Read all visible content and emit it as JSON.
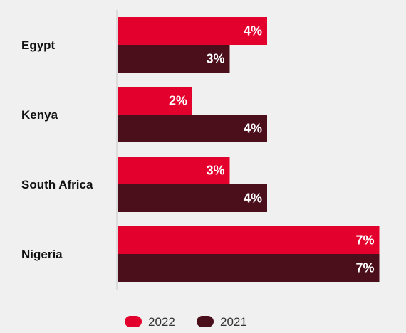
{
  "chart_data": {
    "type": "bar",
    "orientation": "horizontal",
    "categories": [
      "Egypt",
      "Kenya",
      "South Africa",
      "Nigeria"
    ],
    "series": [
      {
        "name": "2022",
        "color": "#e3002d",
        "values": [
          4,
          2,
          3,
          7
        ],
        "labels": [
          "4%",
          "2%",
          "3%",
          "7%"
        ]
      },
      {
        "name": "2021",
        "color": "#4a0f1b",
        "values": [
          3,
          4,
          4,
          7
        ],
        "labels": [
          "3%",
          "4%",
          "4%",
          "7%"
        ]
      }
    ],
    "xlim": [
      0,
      7
    ],
    "grid": false,
    "legend_position": "bottom"
  }
}
